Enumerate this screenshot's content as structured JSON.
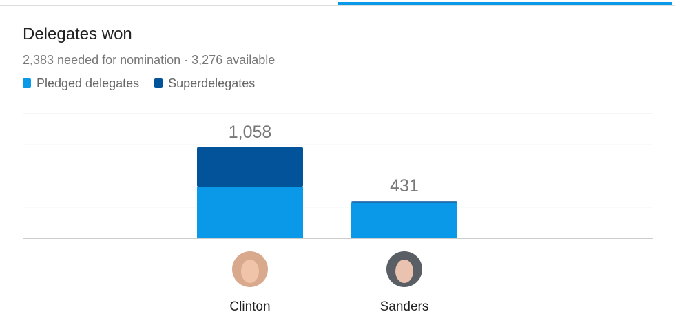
{
  "header": {
    "title": "Delegates won",
    "subtitle": "2,383 needed for nomination · 3,276 available"
  },
  "chart_data": {
    "type": "bar",
    "stacked": true,
    "title": "Delegates won",
    "categories": [
      "Clinton",
      "Sanders"
    ],
    "series": [
      {
        "name": "Pledged delegates",
        "color": "#0a98e8",
        "values": [
          600,
          411
        ]
      },
      {
        "name": "Superdelegates",
        "color": "#03539a",
        "values": [
          458,
          20
        ]
      }
    ],
    "totals": [
      "1,058",
      "431"
    ],
    "ylim": [
      0,
      1450
    ],
    "grid": true,
    "legend": "top-left"
  },
  "avatars": [
    {
      "name": "Clinton",
      "icon": "clinton-avatar"
    },
    {
      "name": "Sanders",
      "icon": "sanders-avatar"
    }
  ]
}
